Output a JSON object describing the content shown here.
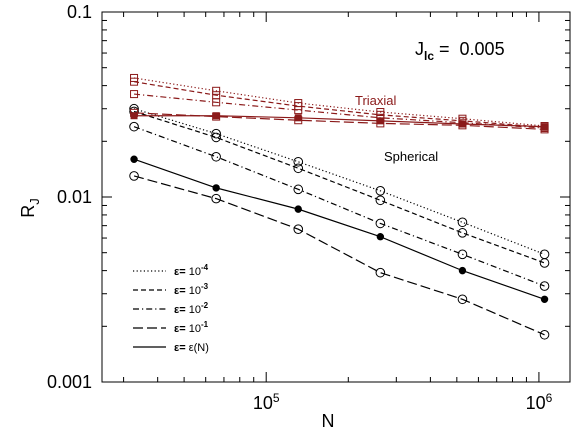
{
  "chart_data": {
    "type": "line",
    "xscale": "log",
    "yscale": "log",
    "xlim": [
      25000,
      1300000
    ],
    "ylim": [
      0.001,
      0.1
    ],
    "xlabel": "N",
    "ylabel": "R",
    "ylabel_sub": "J",
    "x_ticks": [
      {
        "value": 100000,
        "base": "10",
        "exp": "5"
      },
      {
        "value": 1000000,
        "base": "10",
        "exp": "6"
      }
    ],
    "y_ticks": [
      {
        "value": 0.001,
        "label": "0.001"
      },
      {
        "value": 0.01,
        "label": "0.01"
      },
      {
        "value": 0.1,
        "label": "0.1"
      }
    ],
    "annotations": {
      "jlc_main": "J",
      "jlc_sub": "lc",
      "jlc_value": " =  0.005",
      "triaxial": "Triaxial",
      "spherical": "Spherical"
    },
    "colors": {
      "spherical": "#000000",
      "triaxial": "#8b1a1a"
    },
    "x": [
      32768,
      65536,
      131072,
      262144,
      524288,
      1048576
    ],
    "legend": {
      "placement": "bottom-left",
      "entries": [
        {
          "style": "dotted",
          "prefix": "ε= ",
          "base": "10",
          "exp": "-4"
        },
        {
          "style": "dashed",
          "prefix": "ε= ",
          "base": "10",
          "exp": "-3"
        },
        {
          "style": "dashdot",
          "prefix": "ε= ",
          "base": "10",
          "exp": "-2"
        },
        {
          "style": "longdash",
          "prefix": "ε= ",
          "base": "10",
          "exp": "-1"
        },
        {
          "style": "solid",
          "prefix": "ε= ",
          "base": "ε(N)",
          "exp": ""
        }
      ]
    },
    "series": [
      {
        "group": "spherical",
        "style": "dotted",
        "marker": "open-circle",
        "values": [
          0.03,
          0.022,
          0.0155,
          0.0108,
          0.0073,
          0.0049
        ]
      },
      {
        "group": "spherical",
        "style": "dashed",
        "marker": "open-circle",
        "values": [
          0.029,
          0.021,
          0.0143,
          0.0096,
          0.0064,
          0.0044
        ]
      },
      {
        "group": "spherical",
        "style": "dashdot",
        "marker": "open-circle",
        "values": [
          0.024,
          0.0165,
          0.011,
          0.0072,
          0.0049,
          0.0033
        ]
      },
      {
        "group": "spherical",
        "style": "longdash",
        "marker": "open-circle",
        "values": [
          0.013,
          0.0098,
          0.0067,
          0.0039,
          0.0028,
          0.0018
        ]
      },
      {
        "group": "spherical",
        "style": "solid",
        "marker": "filled-circle",
        "values": [
          0.016,
          0.0112,
          0.0086,
          0.0061,
          0.004,
          0.0028
        ]
      },
      {
        "group": "triaxial",
        "style": "dotted",
        "marker": "open-square",
        "values": [
          0.044,
          0.0375,
          0.0322,
          0.0288,
          0.0265,
          0.0242
        ]
      },
      {
        "group": "triaxial",
        "style": "dashed",
        "marker": "open-square",
        "values": [
          0.042,
          0.0355,
          0.031,
          0.0278,
          0.0258,
          0.0238
        ]
      },
      {
        "group": "triaxial",
        "style": "dashdot",
        "marker": "open-square",
        "values": [
          0.036,
          0.0325,
          0.0295,
          0.0268,
          0.0252,
          0.0236
        ]
      },
      {
        "group": "triaxial",
        "style": "longdash",
        "marker": "open-square",
        "values": [
          0.0285,
          0.0272,
          0.026,
          0.025,
          0.0244,
          0.0232
        ]
      },
      {
        "group": "triaxial",
        "style": "solid",
        "marker": "filled-square",
        "values": [
          0.0275,
          0.0275,
          0.0268,
          0.0258,
          0.0248,
          0.024
        ]
      }
    ]
  }
}
